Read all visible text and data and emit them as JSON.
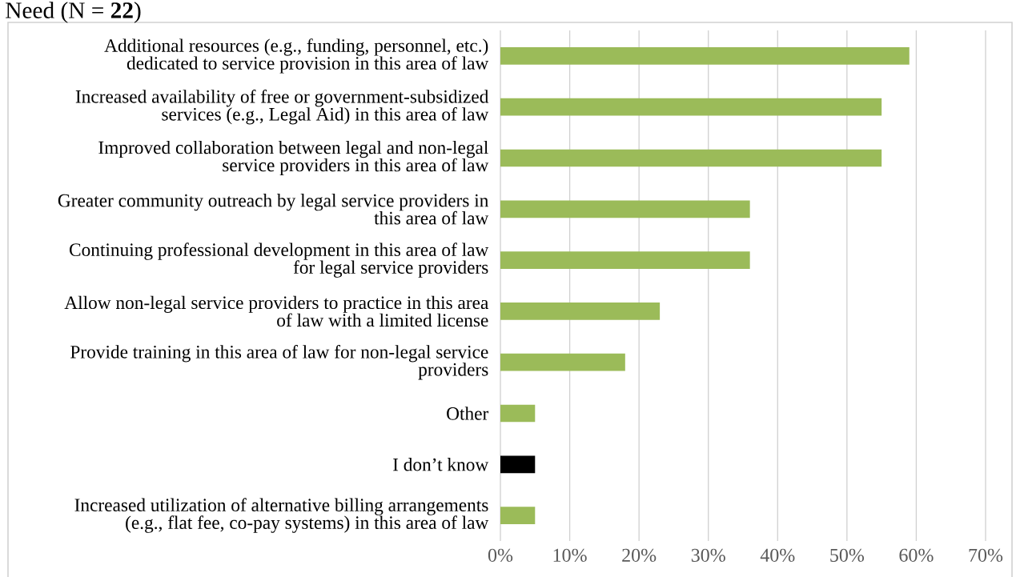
{
  "chart_data": {
    "type": "bar",
    "orientation": "horizontal",
    "title": "Need (N = **22**)",
    "categories": [
      "Additional resources (e.g., funding, personnel, etc.) dedicated to service provision in this area of law",
      "Increased availability of free or government-subsidized services (e.g., Legal Aid) in this area of law",
      "Improved collaboration between legal and non-legal service providers in this area of law",
      "Greater community outreach by legal service providers in this area of law",
      "Continuing professional development in this area of law for legal service providers",
      "Allow non-legal service providers to practice in this area of law with a limited license",
      "Provide training in this area of law for non-legal service providers",
      "Other",
      "I don’t know",
      "Increased utilization of alternative billing arrangements (e.g., flat fee, co-pay systems) in this area of law"
    ],
    "values": [
      59,
      55,
      55,
      36,
      36,
      23,
      18,
      5,
      5,
      5
    ],
    "colors": [
      "#9bbb59",
      "#9bbb59",
      "#9bbb59",
      "#9bbb59",
      "#9bbb59",
      "#9bbb59",
      "#9bbb59",
      "#9bbb59",
      "#000000",
      "#9bbb59"
    ],
    "xlim": [
      0,
      70
    ],
    "xticks": [
      {
        "value": 0,
        "label": "0%"
      },
      {
        "value": 10,
        "label": "10%"
      },
      {
        "value": 20,
        "label": "20%"
      },
      {
        "value": 30,
        "label": "30%"
      },
      {
        "value": 40,
        "label": "40%"
      },
      {
        "value": 50,
        "label": "50%"
      },
      {
        "value": 60,
        "label": "60%"
      },
      {
        "value": 70,
        "label": "70%"
      }
    ],
    "grid": "x"
  }
}
